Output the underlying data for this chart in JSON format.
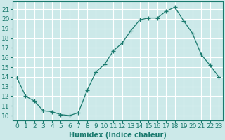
{
  "x": [
    0,
    1,
    2,
    3,
    4,
    5,
    6,
    7,
    8,
    9,
    10,
    11,
    12,
    13,
    14,
    15,
    16,
    17,
    18,
    19,
    20,
    21,
    22,
    23
  ],
  "y": [
    13.9,
    12.0,
    11.5,
    10.5,
    10.4,
    10.1,
    10.0,
    10.3,
    12.6,
    14.5,
    15.3,
    16.7,
    17.5,
    18.8,
    19.9,
    20.1,
    20.1,
    20.8,
    21.2,
    19.8,
    18.5,
    16.3,
    15.2,
    14.0
  ],
  "line_color": "#1a7a6e",
  "marker": "+",
  "marker_size": 4,
  "bg_color": "#cce9e9",
  "grid_color": "#ffffff",
  "xlabel": "Humidex (Indice chaleur)",
  "ylabel_ticks": [
    10,
    11,
    12,
    13,
    14,
    15,
    16,
    17,
    18,
    19,
    20,
    21
  ],
  "ylim": [
    9.5,
    21.8
  ],
  "xlim": [
    -0.5,
    23.5
  ],
  "xlabel_fontsize": 7,
  "tick_fontsize": 6.5
}
